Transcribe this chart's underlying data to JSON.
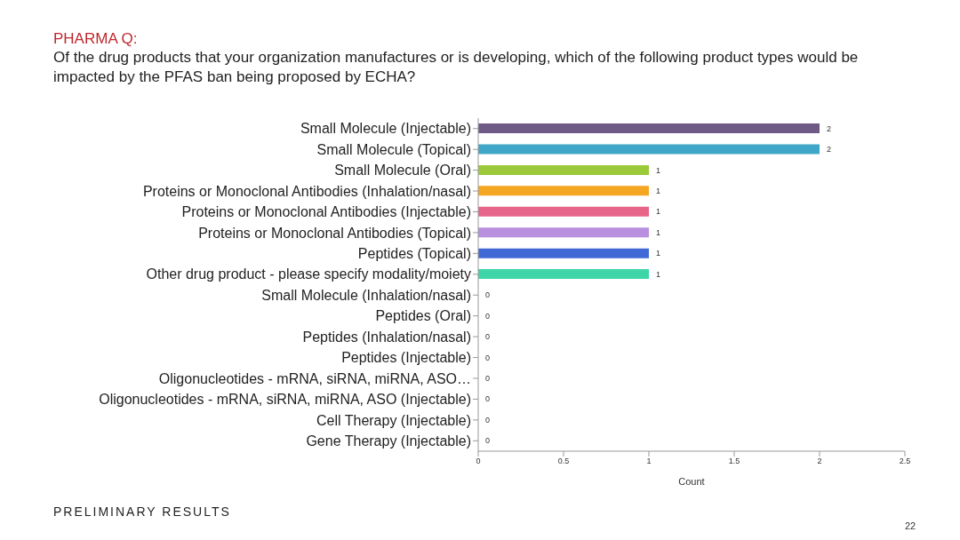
{
  "chart_data": {
    "type": "bar",
    "orientation": "horizontal",
    "title": "PHARMA Q:",
    "subtitle": "Of the drug products that your organization manufactures or is developing, which of the following product types would be impacted by the PFAS ban being proposed by ECHA?",
    "categories": [
      "Small Molecule (Injectable)",
      "Small Molecule (Topical)",
      "Small Molecule (Oral)",
      "Proteins or Monoclonal Antibodies (Inhalation/nasal)",
      "Proteins or Monoclonal Antibodies (Injectable)",
      "Proteins or Monoclonal Antibodies (Topical)",
      "Peptides (Topical)",
      "Other drug product - please specify modality/moiety",
      "Small Molecule (Inhalation/nasal)",
      "Peptides (Oral)",
      "Peptides (Inhalation/nasal)",
      "Peptides (Injectable)",
      "Oligonucleotides - mRNA, siRNA, miRNA, ASO…",
      "Oligonucleotides - mRNA, siRNA, miRNA, ASO (Injectable)",
      "Cell Therapy (Injectable)",
      "Gene Therapy (Injectable)"
    ],
    "values": [
      2,
      2,
      1,
      1,
      1,
      1,
      1,
      1,
      0,
      0,
      0,
      0,
      0,
      0,
      0,
      0
    ],
    "colors": [
      "#6f5a86",
      "#3fa6c8",
      "#9bc93a",
      "#f5a623",
      "#e8658a",
      "#b98fe0",
      "#4169d6",
      "#3ed6a8",
      "#3ed6a8",
      "#3ed6a8",
      "#3ed6a8",
      "#3ed6a8",
      "#3ed6a8",
      "#3ed6a8",
      "#3ed6a8",
      "#3ed6a8"
    ],
    "xlabel": "Count",
    "xlim": [
      0,
      2.5
    ],
    "xticks": [
      0,
      0.5,
      1,
      1.5,
      2,
      2.5
    ],
    "grid": false,
    "data_labels": true,
    "annotations": [
      "PRELIMINARY RESULTS",
      "22"
    ]
  }
}
